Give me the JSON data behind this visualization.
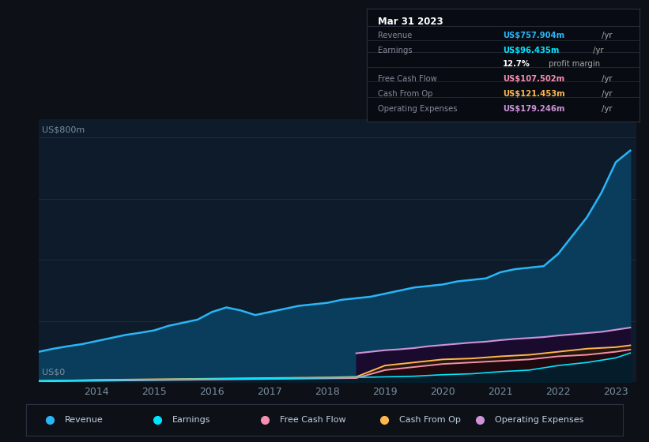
{
  "bg_color": "#0d1117",
  "chart_bg": "#0d1b2a",
  "ylabel": "US$800m",
  "ylabel0": "US$0",
  "ylim": [
    0,
    860
  ],
  "years_range": [
    2013.0,
    2023.35
  ],
  "xtick_labels": [
    "2014",
    "2015",
    "2016",
    "2017",
    "2018",
    "2019",
    "2020",
    "2021",
    "2022",
    "2023"
  ],
  "xtick_positions": [
    2014,
    2015,
    2016,
    2017,
    2018,
    2019,
    2020,
    2021,
    2022,
    2023
  ],
  "series": {
    "Revenue": {
      "color": "#29b6f6",
      "fill_color": "#0a3d5c",
      "data_x": [
        2013.0,
        2013.25,
        2013.5,
        2013.75,
        2014.0,
        2014.25,
        2014.5,
        2014.75,
        2015.0,
        2015.25,
        2015.5,
        2015.75,
        2016.0,
        2016.25,
        2016.5,
        2016.75,
        2017.0,
        2017.25,
        2017.5,
        2017.75,
        2018.0,
        2018.25,
        2018.5,
        2018.75,
        2019.0,
        2019.25,
        2019.5,
        2019.75,
        2020.0,
        2020.25,
        2020.5,
        2020.75,
        2021.0,
        2021.25,
        2021.5,
        2021.75,
        2022.0,
        2022.25,
        2022.5,
        2022.75,
        2023.0,
        2023.25
      ],
      "data_y": [
        100,
        110,
        118,
        125,
        135,
        145,
        155,
        162,
        170,
        185,
        195,
        205,
        230,
        245,
        235,
        220,
        230,
        240,
        250,
        255,
        260,
        270,
        275,
        280,
        290,
        300,
        310,
        315,
        320,
        330,
        335,
        340,
        360,
        370,
        375,
        380,
        420,
        480,
        540,
        620,
        720,
        758
      ]
    },
    "Earnings": {
      "color": "#00e5ff",
      "fill_color": "#002233",
      "data_x": [
        2013.0,
        2013.5,
        2014.0,
        2014.5,
        2015.0,
        2015.5,
        2016.0,
        2016.5,
        2017.0,
        2017.5,
        2018.0,
        2018.5,
        2019.0,
        2019.5,
        2020.0,
        2020.5,
        2021.0,
        2021.5,
        2022.0,
        2022.5,
        2023.0,
        2023.25
      ],
      "data_y": [
        5,
        6,
        7,
        8,
        9,
        10,
        11,
        12,
        13,
        14,
        15,
        16,
        18,
        20,
        25,
        28,
        35,
        40,
        55,
        65,
        80,
        96
      ]
    },
    "FreeCashFlow": {
      "color": "#f48fb1",
      "fill_color": "#1a0510",
      "data_x": [
        2013.0,
        2013.5,
        2014.0,
        2014.5,
        2015.0,
        2015.5,
        2016.0,
        2016.5,
        2017.0,
        2017.5,
        2018.0,
        2018.5,
        2019.0,
        2019.5,
        2020.0,
        2020.5,
        2021.0,
        2021.5,
        2022.0,
        2022.5,
        2023.0,
        2023.25
      ],
      "data_y": [
        3,
        4,
        5,
        6,
        7,
        8,
        9,
        10,
        11,
        12,
        13,
        14,
        40,
        50,
        60,
        65,
        70,
        75,
        85,
        90,
        100,
        107
      ]
    },
    "CashFromOp": {
      "color": "#ffb74d",
      "fill_color": "#2a1a05",
      "data_x": [
        2013.0,
        2013.5,
        2014.0,
        2014.5,
        2015.0,
        2015.5,
        2016.0,
        2016.5,
        2017.0,
        2017.5,
        2018.0,
        2018.5,
        2019.0,
        2019.5,
        2020.0,
        2020.5,
        2021.0,
        2021.5,
        2022.0,
        2022.5,
        2023.0,
        2023.25
      ],
      "data_y": [
        5,
        6,
        8,
        9,
        10,
        11,
        12,
        13,
        14,
        15,
        16,
        18,
        55,
        65,
        75,
        78,
        85,
        90,
        100,
        110,
        115,
        121
      ]
    },
    "OperatingExpenses": {
      "color": "#ce93d8",
      "fill_color": "#1a0a2e",
      "data_x": [
        2018.5,
        2018.75,
        2019.0,
        2019.25,
        2019.5,
        2019.75,
        2020.0,
        2020.25,
        2020.5,
        2020.75,
        2021.0,
        2021.25,
        2021.5,
        2021.75,
        2022.0,
        2022.25,
        2022.5,
        2022.75,
        2023.0,
        2023.25
      ],
      "data_y": [
        95,
        100,
        105,
        108,
        112,
        118,
        122,
        126,
        130,
        133,
        138,
        142,
        145,
        148,
        153,
        157,
        161,
        165,
        172,
        179
      ]
    }
  },
  "info_box": {
    "title": "Mar 31 2023",
    "rows": [
      {
        "label": "Revenue",
        "value": "US$757.904m",
        "value_color": "#29b6f6",
        "suffix": " /yr",
        "suffix_color": "#aaaaaa"
      },
      {
        "label": "Earnings",
        "value": "US$96.435m",
        "value_color": "#00e5ff",
        "suffix": " /yr",
        "suffix_color": "#aaaaaa"
      },
      {
        "label": "",
        "value": "12.7%",
        "value_color": "#ffffff",
        "suffix": " profit margin",
        "suffix_color": "#aaaaaa"
      },
      {
        "label": "Free Cash Flow",
        "value": "US$107.502m",
        "value_color": "#f48fb1",
        "suffix": " /yr",
        "suffix_color": "#aaaaaa"
      },
      {
        "label": "Cash From Op",
        "value": "US$121.453m",
        "value_color": "#ffb74d",
        "suffix": " /yr",
        "suffix_color": "#aaaaaa"
      },
      {
        "label": "Operating Expenses",
        "value": "US$179.246m",
        "value_color": "#ce93d8",
        "suffix": " /yr",
        "suffix_color": "#aaaaaa"
      }
    ]
  },
  "legend": [
    {
      "label": "Revenue",
      "color": "#29b6f6"
    },
    {
      "label": "Earnings",
      "color": "#00e5ff"
    },
    {
      "label": "Free Cash Flow",
      "color": "#f48fb1"
    },
    {
      "label": "Cash From Op",
      "color": "#ffb74d"
    },
    {
      "label": "Operating Expenses",
      "color": "#ce93d8"
    }
  ]
}
